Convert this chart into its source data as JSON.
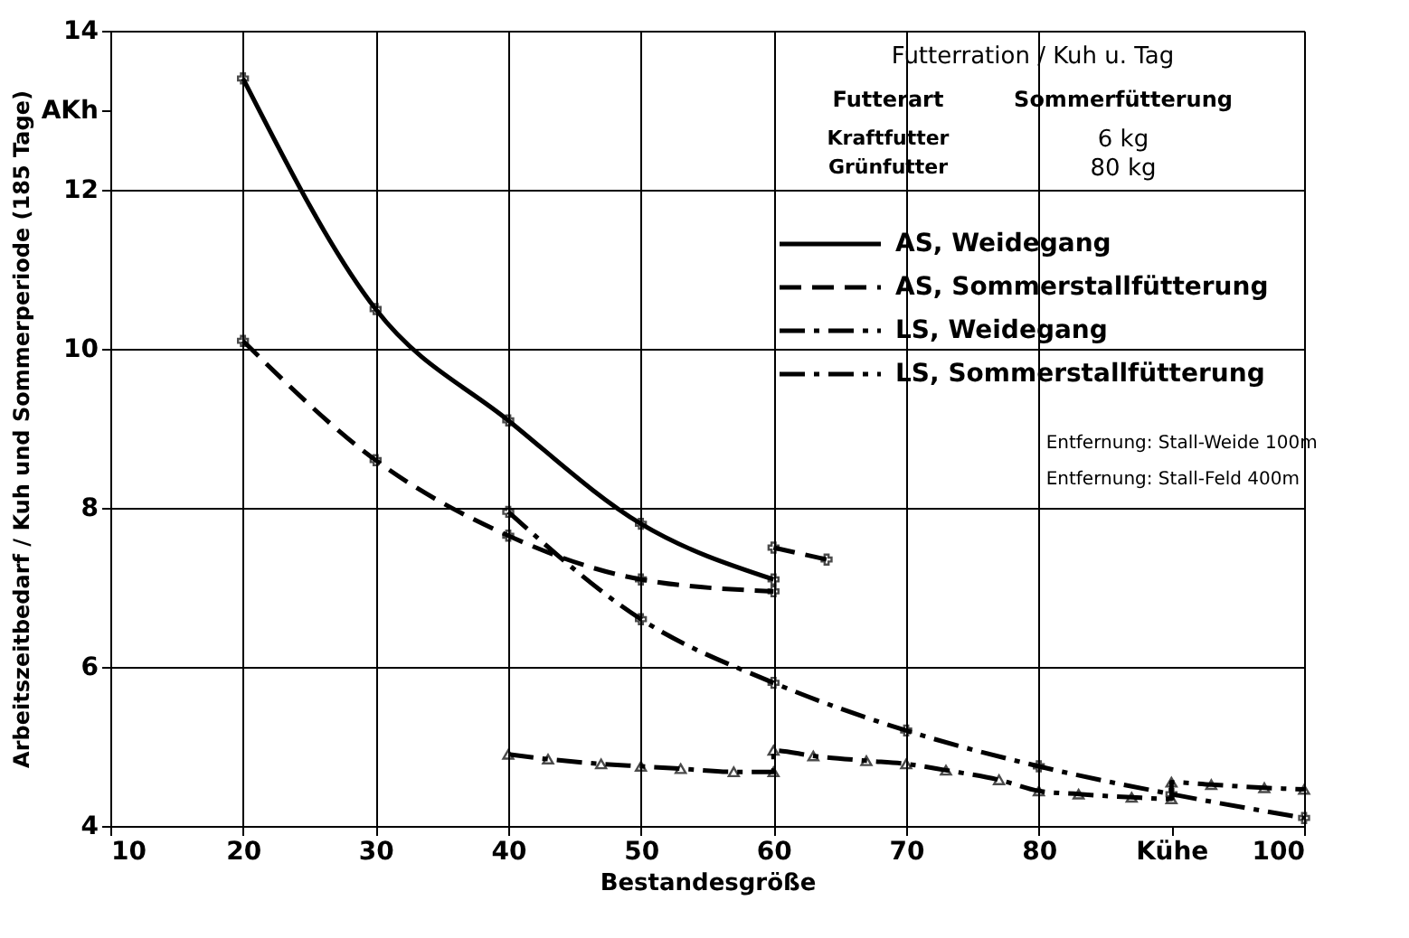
{
  "chart_data": {
    "type": "line",
    "xlabel": "Bestandesgröße",
    "ylabel": "Arbeitszeitbedarf / Kuh und Sommerperiode (185 Tage)",
    "xlim": [
      10,
      100
    ],
    "xticks": [
      10,
      20,
      30,
      40,
      50,
      60,
      70,
      {
        "value": 90,
        "label": "Kühe"
      },
      80,
      100
    ],
    "ylim": [
      4,
      14
    ],
    "yticks": [
      4,
      6,
      8,
      10,
      12,
      14,
      {
        "value": 13,
        "label": "AKh"
      }
    ],
    "grid": true,
    "legend": "top right",
    "series": [
      {
        "name": "AS, Weidegang",
        "color": "#000000",
        "line_style": "solid",
        "marker": "cross",
        "x": [
          20,
          30,
          40,
          50,
          60
        ],
        "values": [
          13.4,
          10.5,
          9.1,
          7.8,
          7.1
        ]
      },
      {
        "name": "AS, Sommerstallfütterung",
        "color": "#000000",
        "line_style": "dashed",
        "marker": "cross",
        "x": [
          20,
          30,
          40,
          50,
          60
        ],
        "values": [
          10.1,
          8.6,
          7.65,
          7.1,
          6.95
        ]
      },
      {
        "color": "#000000",
        "line_style": "dashed",
        "marker": "cross",
        "x": [
          60,
          64
        ],
        "values": [
          7.5,
          7.35
        ]
      },
      {
        "name": "LS, Weidegang",
        "color": "#000000",
        "line_style": "dashdot",
        "marker": "cross",
        "x": [
          40,
          50,
          60,
          70,
          80,
          90,
          100
        ],
        "values": [
          7.95,
          6.6,
          5.8,
          5.2,
          4.75,
          4.4,
          4.1
        ]
      },
      {
        "name": "LS, Sommerstallfütterung",
        "color": "#000000",
        "line_style": "dashdot",
        "marker": "triangle",
        "x": [
          40,
          43,
          47,
          50,
          53,
          57,
          60,
          60,
          63,
          67,
          70,
          73,
          77,
          80,
          83,
          87,
          90,
          90,
          93,
          97,
          100
        ],
        "values": [
          4.9,
          4.84,
          4.78,
          4.75,
          4.72,
          4.68,
          4.68,
          4.95,
          4.88,
          4.82,
          4.78,
          4.7,
          4.58,
          4.44,
          4.4,
          4.36,
          4.34,
          4.55,
          4.52,
          4.48,
          4.46
        ]
      }
    ],
    "annotations": [
      "Futterration / Kuh u. Tag",
      "Futterart",
      "Sommerfütterung",
      "Kraftfutter",
      "Grünfutter",
      "6 kg",
      "80 kg",
      "Entfernung: Stall-Weide 100m",
      "Entfernung: Stall-Feld 400m"
    ]
  }
}
